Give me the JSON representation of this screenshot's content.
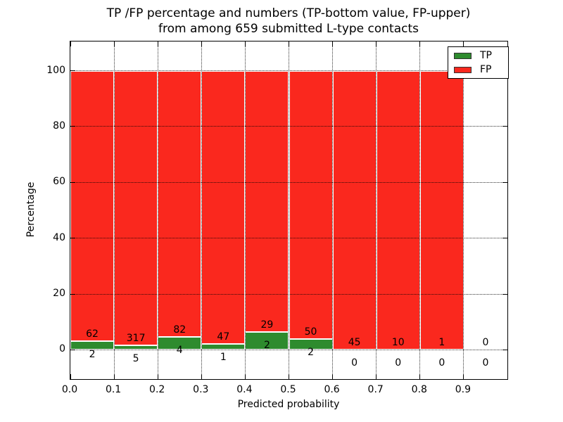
{
  "title": {
    "line1": "TP /FP percentage and numbers (TP-bottom value, FP-upper)",
    "line2": "from among 659 submitted L-type contacts"
  },
  "chart_data": {
    "type": "bar",
    "stacked": true,
    "normalized": "each bin scaled to 100%",
    "total_contacts": 659,
    "bin_width": 0.1,
    "bin_starts": [
      0.0,
      0.1,
      0.2,
      0.3,
      0.4,
      0.5,
      0.6,
      0.7,
      0.8,
      0.9
    ],
    "series": [
      {
        "name": "TP",
        "color": "#2e8b2e",
        "counts": [
          2,
          5,
          4,
          1,
          2,
          2,
          0,
          0,
          0,
          0
        ]
      },
      {
        "name": "FP",
        "color": "#fa281e",
        "counts": [
          62,
          317,
          82,
          47,
          29,
          50,
          45,
          10,
          1,
          0
        ]
      }
    ],
    "bar_label_upper": [
      "62",
      "317",
      "82",
      "47",
      "29",
      "50",
      "45",
      "10",
      "1",
      "0"
    ],
    "bar_label_lower": [
      "2",
      "5",
      "4",
      "1",
      "2",
      "2",
      "0",
      "0",
      "0",
      "0"
    ],
    "xlabel": "Predicted probability",
    "ylabel": "Percentage",
    "xlim": [
      0.0,
      1.0
    ],
    "ylim": [
      -10.5,
      110.5
    ],
    "xtick_labels": [
      "0.0",
      "0.1",
      "0.2",
      "0.3",
      "0.4",
      "0.5",
      "0.6",
      "0.7",
      "0.8",
      "0.9"
    ],
    "xtick_values": [
      0.0,
      0.1,
      0.2,
      0.3,
      0.4,
      0.5,
      0.6,
      0.7,
      0.8,
      0.9
    ],
    "ytick_labels": [
      "0",
      "20",
      "40",
      "60",
      "80",
      "100"
    ],
    "ytick_values": [
      0,
      20,
      40,
      60,
      80,
      100
    ],
    "grid": "dotted, both axes, drawn over bars",
    "bar_edge_color": "#ffffff",
    "legend": {
      "position": "upper right",
      "entries": [
        {
          "label": "TP",
          "color": "#2e8b2e"
        },
        {
          "label": "FP",
          "color": "#fa281e"
        }
      ]
    }
  }
}
